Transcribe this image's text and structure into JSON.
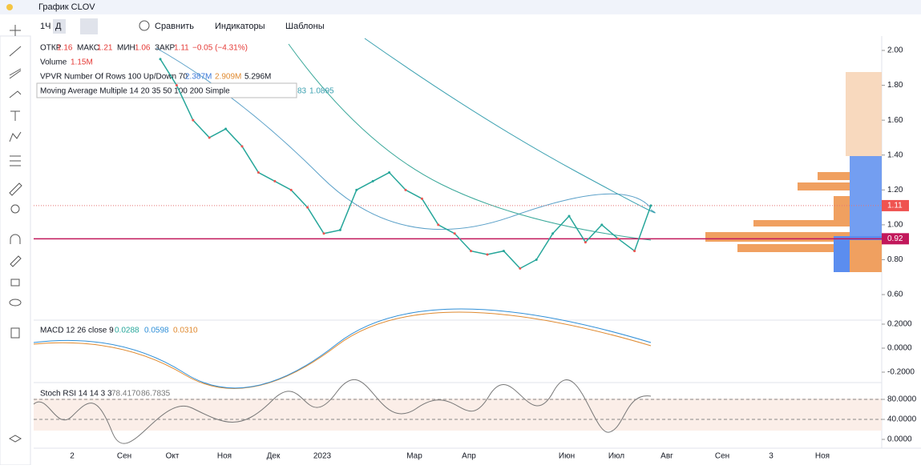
{
  "window": {
    "title": "График CLOV"
  },
  "toolbar": {
    "interval": "1Ч",
    "range": "Д",
    "compare": "Сравнить",
    "indicators": "Индикаторы",
    "templates": "Шаблоны"
  },
  "legend": {
    "open_label": "ОТКР",
    "open": "1.16",
    "high_label": "МАКС",
    "high": "1.21",
    "low_label": "МИН",
    "low": "1.06",
    "close_label": "ЗАКР",
    "close": "1.11",
    "change": "−0.05 (−4.31%)",
    "volume_label": "Volume",
    "volume": "1.15M",
    "vpvr_label": "VPVR Number Of Rows 100 Up/Down 70",
    "vpvr_up": "2.387M",
    "vpvr_down": "2.909M",
    "vpvr_total": "5.296M",
    "ma_label": "Moving Average Multiple 14 20 35 50 100 200 Simple",
    "ma_value1": "83",
    "ma_value2": "1.0895"
  },
  "price_axis": {
    "ticks": [
      {
        "value": 2.0,
        "label": "2.00"
      },
      {
        "value": 1.8,
        "label": "1.80"
      },
      {
        "value": 1.6,
        "label": "1.60"
      },
      {
        "value": 1.4,
        "label": "1.40"
      },
      {
        "value": 1.2,
        "label": "1.20"
      },
      {
        "value": 1.0,
        "label": "1.00"
      },
      {
        "value": 0.8,
        "label": "0.80"
      },
      {
        "value": 0.6,
        "label": "0.60"
      }
    ],
    "last": {
      "value": 1.11,
      "label": "1.11"
    },
    "line": {
      "value": 0.92,
      "label": "0.92"
    }
  },
  "price": {
    "close": [
      1.95,
      1.8,
      1.6,
      1.5,
      1.55,
      1.45,
      1.3,
      1.25,
      1.2,
      1.1,
      0.95,
      0.97,
      1.2,
      1.25,
      1.3,
      1.2,
      1.15,
      1.0,
      0.95,
      0.85,
      0.83,
      0.85,
      0.75,
      0.8,
      0.95,
      1.05,
      0.9,
      1.0,
      0.92,
      0.85,
      1.11
    ]
  },
  "macd": {
    "label": "MACD 12 26 close 9",
    "v1": "0.0288",
    "v2": "0.0598",
    "v3": "0.0310",
    "ticks": [
      {
        "value": 0.2,
        "label": "0.2000"
      },
      {
        "value": 0,
        "label": "0.0000"
      },
      {
        "value": -0.2,
        "label": "-0.2000"
      }
    ]
  },
  "rsi": {
    "label": "Stoch RSI 14 14 3 3",
    "v1": "78.4170",
    "v2": "86.7835",
    "ticks": [
      {
        "value": 80,
        "label": "80.0000"
      },
      {
        "value": 40,
        "label": "40.0000"
      },
      {
        "value": 0,
        "label": "0.0000"
      }
    ]
  },
  "time_axis": [
    "2",
    "Сен",
    "Окт",
    "Ноя",
    "Дек",
    "2023",
    "Мар",
    "Апр",
    "Июн",
    "Июл",
    "Авг",
    "Сен",
    "3",
    "Ноя"
  ]
}
